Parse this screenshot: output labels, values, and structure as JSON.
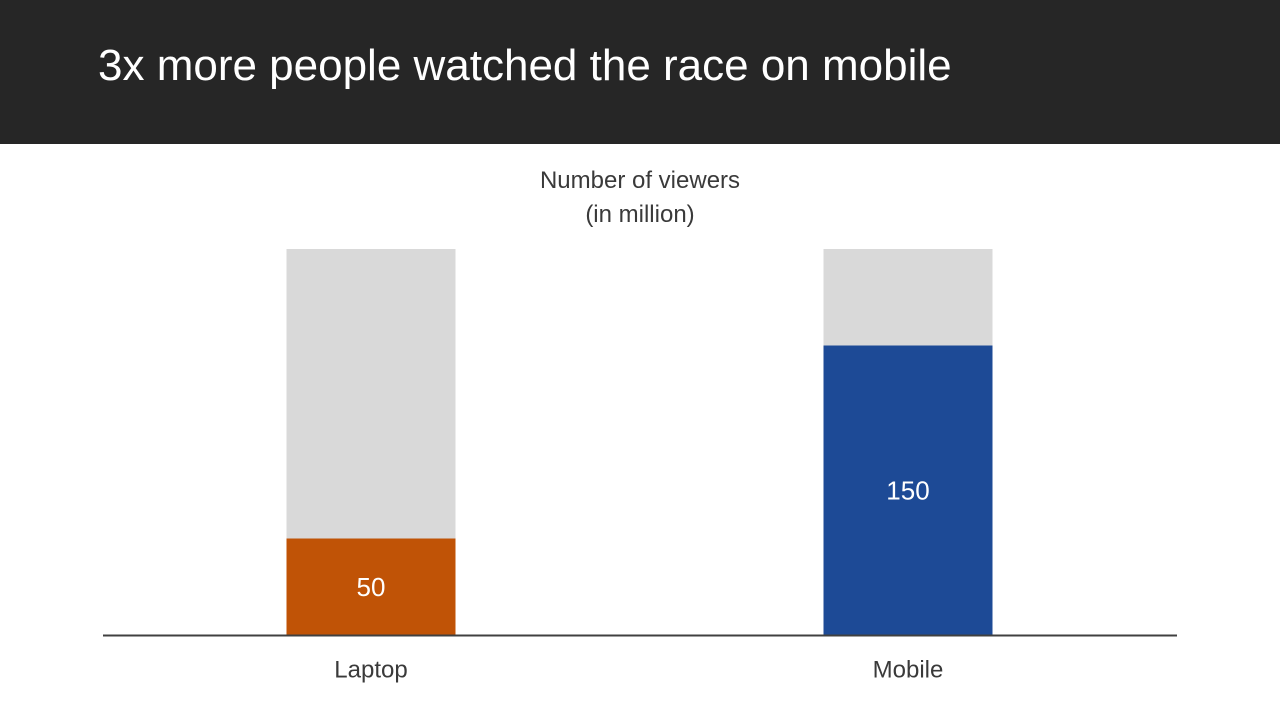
{
  "header": {
    "title": "3x more people watched the race on mobile"
  },
  "chart_data": {
    "type": "bar",
    "title": "3x more people watched the race on mobile",
    "subtitle_lines": [
      "Number of viewers",
      "(in million)"
    ],
    "categories": [
      "Laptop",
      "Mobile"
    ],
    "values": [
      50,
      150
    ],
    "total": 200,
    "ylim": [
      0,
      200
    ],
    "colors": {
      "Laptop": "#C05306",
      "Mobile": "#1D4A96",
      "remainder": "#D9D9D9",
      "axis": "#404040"
    },
    "xlabel": "",
    "ylabel": "",
    "grid": false,
    "legend": "none"
  }
}
